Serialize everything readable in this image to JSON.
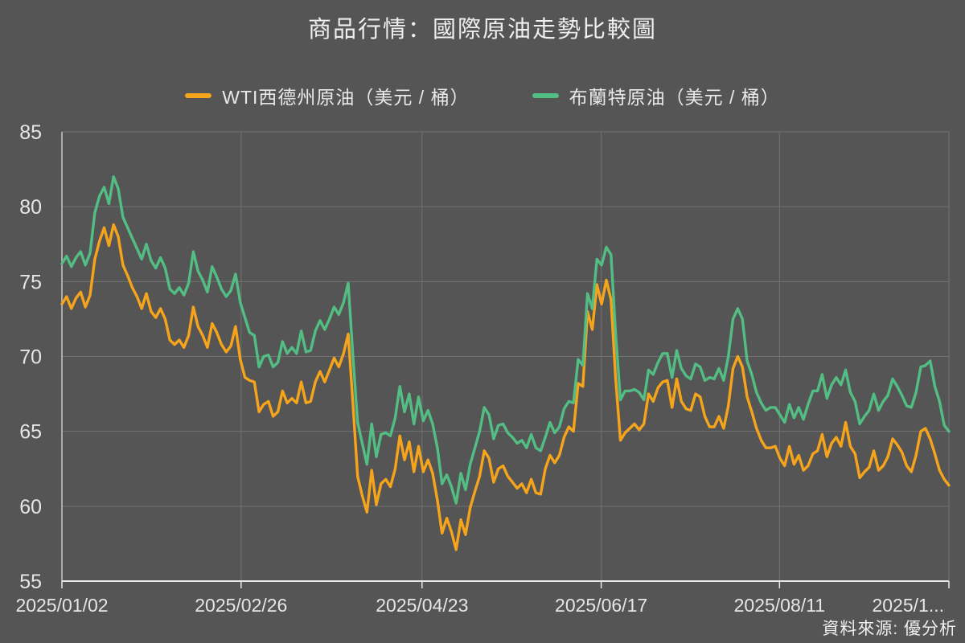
{
  "title": "商品行情：國際原油走勢比較圖",
  "source_note": "資料來源: 優分析",
  "colors": {
    "background": "#555555",
    "grid": "#727272",
    "axis_bottom": "#e8e8e8",
    "axis_left": "#c9c9c9",
    "tick_text": "#e6e6e6",
    "wti_orange": "#f5a41c",
    "brent_green": "#52be84"
  },
  "chart_data": {
    "type": "line",
    "title": "商品行情：國際原油走勢比較圖",
    "xlabel": "",
    "ylabel": "",
    "ylim": [
      55,
      85
    ],
    "yticks": [
      55,
      60,
      65,
      70,
      75,
      80,
      85
    ],
    "xtick_labels": [
      "2025/01/02",
      "2025/02/26",
      "2025/04/23",
      "2025/06/17",
      "2025/08/11",
      "2025/1..."
    ],
    "grid": true,
    "legend_position": "top",
    "series": [
      {
        "name": "WTI西德州原油（美元 / 桶）",
        "color": "#f5a41c",
        "values": [
          73.5,
          74.0,
          73.2,
          73.9,
          74.3,
          73.3,
          74.1,
          76.5,
          77.7,
          78.6,
          77.4,
          78.8,
          78.0,
          76.1,
          75.4,
          74.6,
          74.0,
          73.2,
          74.2,
          73.0,
          72.6,
          73.2,
          72.5,
          71.1,
          70.8,
          71.1,
          70.6,
          71.4,
          73.3,
          72.0,
          71.4,
          70.6,
          72.2,
          71.6,
          70.8,
          70.3,
          70.7,
          72.0,
          69.8,
          68.6,
          68.4,
          68.3,
          66.3,
          66.8,
          67.0,
          66.0,
          66.3,
          67.7,
          66.9,
          67.2,
          66.9,
          68.3,
          66.9,
          67.0,
          68.3,
          69.0,
          68.3,
          69.1,
          69.9,
          69.3,
          70.2,
          71.5,
          66.9,
          62.0,
          60.7,
          59.6,
          62.4,
          60.1,
          61.5,
          61.8,
          61.3,
          62.5,
          64.7,
          63.1,
          64.3,
          62.3,
          64.0,
          62.3,
          63.1,
          62.2,
          60.4,
          58.2,
          59.2,
          58.3,
          57.1,
          59.1,
          58.1,
          59.9,
          61.0,
          62.0,
          63.7,
          63.2,
          61.6,
          62.5,
          62.7,
          62.0,
          61.6,
          61.2,
          61.5,
          60.9,
          61.8,
          60.9,
          60.8,
          62.5,
          63.4,
          62.9,
          63.4,
          64.6,
          65.3,
          65.0,
          68.2,
          68.0,
          73.0,
          71.8,
          74.8,
          73.5,
          75.1,
          73.8,
          68.5,
          64.4,
          64.9,
          65.2,
          65.5,
          65.1,
          65.5,
          67.5,
          67.0,
          67.9,
          68.3,
          68.4,
          66.6,
          68.5,
          67.0,
          66.5,
          66.4,
          67.5,
          67.3,
          66.0,
          65.3,
          65.3,
          66.0,
          65.2,
          66.7,
          69.2,
          70.0,
          69.3,
          67.3,
          66.3,
          65.2,
          64.4,
          63.9,
          63.9,
          64.0,
          63.2,
          62.7,
          64.0,
          62.8,
          63.4,
          62.4,
          62.7,
          63.5,
          63.7,
          64.8,
          63.3,
          64.2,
          64.6,
          64.0,
          65.6,
          64.0,
          63.5,
          61.9,
          62.3,
          62.6,
          63.7,
          62.4,
          62.7,
          63.3,
          64.5,
          64.1,
          63.6,
          62.7,
          62.3,
          63.4,
          65.0,
          65.2,
          64.5,
          63.5,
          62.4,
          61.8,
          61.4
        ]
      },
      {
        "name": "布蘭特原油（美元 / 桶）",
        "color": "#52be84",
        "values": [
          76.2,
          76.7,
          76.0,
          76.6,
          77.0,
          76.1,
          76.9,
          79.6,
          80.7,
          81.3,
          80.2,
          82.0,
          81.2,
          79.3,
          78.6,
          77.9,
          77.2,
          76.5,
          77.5,
          76.4,
          75.9,
          76.6,
          75.9,
          74.5,
          74.2,
          74.6,
          74.1,
          74.9,
          77.0,
          75.7,
          75.1,
          74.3,
          76.0,
          75.3,
          74.5,
          74.0,
          74.4,
          75.5,
          73.6,
          72.6,
          71.6,
          71.4,
          69.3,
          70.0,
          70.1,
          69.3,
          69.6,
          71.0,
          70.2,
          70.6,
          70.2,
          71.7,
          70.3,
          70.4,
          71.7,
          72.4,
          71.8,
          72.5,
          73.3,
          72.8,
          73.6,
          74.9,
          70.1,
          65.6,
          64.2,
          62.8,
          65.5,
          63.3,
          64.8,
          64.9,
          64.7,
          65.9,
          68.0,
          66.3,
          67.5,
          65.5,
          67.3,
          65.7,
          66.4,
          65.5,
          63.9,
          61.5,
          62.1,
          61.3,
          60.2,
          62.2,
          61.1,
          62.8,
          63.9,
          65.0,
          66.6,
          66.1,
          64.5,
          65.4,
          65.5,
          64.9,
          64.6,
          64.2,
          64.4,
          63.9,
          64.8,
          63.9,
          63.7,
          64.6,
          65.6,
          64.9,
          65.3,
          66.5,
          67.0,
          66.9,
          69.8,
          69.4,
          74.2,
          73.2,
          76.5,
          76.1,
          77.3,
          76.8,
          71.5,
          67.1,
          67.7,
          67.7,
          67.8,
          67.6,
          67.1,
          69.1,
          68.8,
          69.6,
          70.2,
          70.2,
          68.6,
          70.4,
          69.2,
          68.7,
          68.5,
          69.5,
          69.3,
          68.4,
          68.6,
          68.5,
          69.2,
          68.4,
          70.0,
          72.5,
          73.2,
          72.5,
          69.7,
          68.8,
          67.6,
          66.9,
          66.4,
          66.6,
          66.6,
          66.1,
          65.6,
          66.8,
          65.9,
          66.6,
          65.8,
          66.8,
          67.7,
          67.7,
          68.8,
          67.2,
          68.1,
          68.6,
          68.1,
          69.1,
          67.6,
          67.0,
          65.5,
          66.0,
          66.4,
          67.5,
          66.4,
          67.0,
          67.4,
          68.5,
          68.0,
          67.4,
          66.7,
          66.6,
          67.6,
          69.3,
          69.4,
          69.7,
          68.0,
          67.0,
          65.4,
          65.0
        ]
      }
    ]
  }
}
